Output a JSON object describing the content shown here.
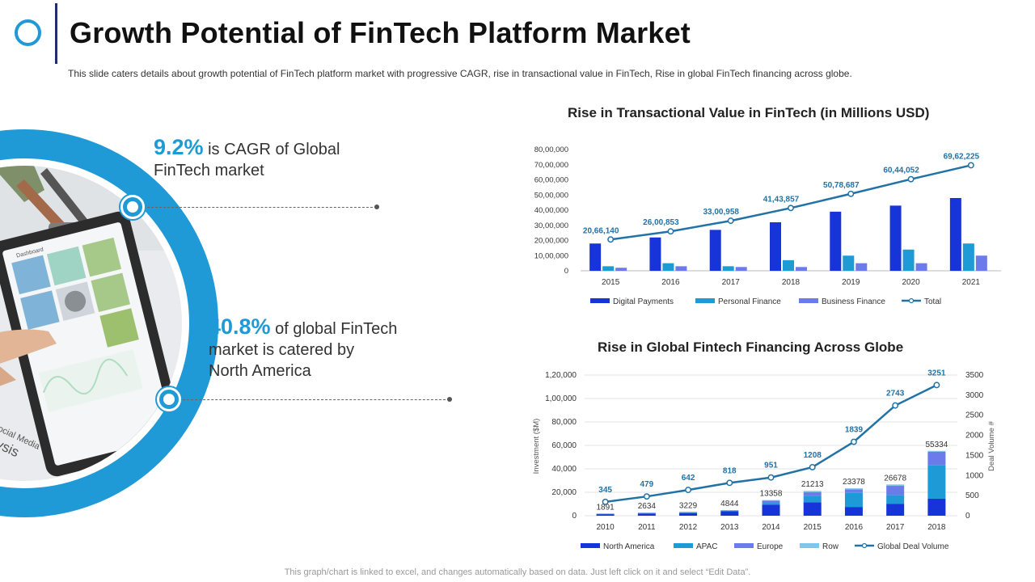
{
  "header": {
    "title": "Growth Potential of FinTech Platform Market",
    "subtitle": "This slide caters details about growth  potential of FinTech  platform market with progressive  CAGR, rise in transactional value  in FinTech, Rise in global FinTech financing across globe."
  },
  "stats": [
    {
      "value": "9.2%",
      "text_line1": " is CAGR  of Global",
      "text_line2": "FinTech market"
    },
    {
      "value": "40.8%",
      "text_line1": " of global FinTech",
      "text_line2": "market is catered by",
      "text_line3": "North America"
    }
  ],
  "photo": {
    "screen_label": "Dashboard",
    "paper_text_1": "Social Media",
    "paper_text_2": "alysis"
  },
  "footer": {
    "note": "This graph/chart is linked to excel,  and changes automatically based on data. Just left click on it and select “Edit Data”."
  },
  "colors": {
    "accent": "#1f9ad6",
    "title_bar": "#1f2f6b",
    "digital_payments": "#1734d9",
    "personal_finance": "#1e9bd7",
    "business_finance": "#6b7cea",
    "row": "#7fc6ef",
    "total_line": "#2173a6"
  },
  "chart_data": [
    {
      "type": "bar",
      "title": "Rise in Transactional Value in FinTech (in Millions USD)",
      "categories": [
        "2015",
        "2016",
        "2017",
        "2018",
        "2019",
        "2020",
        "2021"
      ],
      "ylim": [
        0,
        8000000
      ],
      "yticks": [
        "0",
        "10,00,000",
        "20,00,000",
        "30,00,000",
        "40,00,000",
        "50,00,000",
        "60,00,000",
        "70,00,000",
        "80,00,000"
      ],
      "series": [
        {
          "name": "Digital Payments",
          "values": [
            1800000,
            2200000,
            2700000,
            3200000,
            3900000,
            4300000,
            4800000
          ]
        },
        {
          "name": "Personal Finance",
          "values": [
            300000,
            500000,
            300000,
            700000,
            1000000,
            1400000,
            1800000
          ]
        },
        {
          "name": "Business Finance",
          "values": [
            200000,
            300000,
            250000,
            250000,
            500000,
            500000,
            1000000
          ]
        }
      ],
      "line": {
        "name": "Total",
        "values": [
          2066140,
          2600853,
          3300958,
          4143857,
          5078687,
          6044052,
          6962225
        ],
        "labels": [
          "20,66,140",
          "26,00,853",
          "33,00,958",
          "41,43,857",
          "50,78,687",
          "60,44,052",
          "69,62,225"
        ]
      },
      "legend": [
        "Digital Payments",
        "Personal Finance",
        "Business Finance",
        "Total"
      ],
      "legend_position": "bottom"
    },
    {
      "type": "bar",
      "stacked": true,
      "title": "Rise in Global Fintech Financing Across Globe",
      "categories": [
        "2010",
        "2011",
        "2012",
        "2013",
        "2014",
        "2015",
        "2016",
        "2017",
        "2018"
      ],
      "ylabel": "Investment ($M)",
      "y2label": "Deal Volume #",
      "ylim": [
        0,
        120000
      ],
      "yticks": [
        "0",
        "20,000",
        "40,000",
        "60,000",
        "80,000",
        "1,00,000",
        "1,20,000"
      ],
      "y2lim": [
        0,
        3500
      ],
      "y2ticks": [
        "0",
        "500",
        "1000",
        "1500",
        "2000",
        "2500",
        "3000",
        "3500"
      ],
      "series": [
        {
          "name": "North America",
          "values": [
            1300,
            1800,
            2300,
            3900,
            9500,
            11500,
            7500,
            10000,
            14500
          ]
        },
        {
          "name": "APAC",
          "values": [
            200,
            300,
            400,
            400,
            1500,
            5500,
            12000,
            7500,
            28500
          ]
        },
        {
          "name": "Europe",
          "values": [
            300,
            400,
            400,
            400,
            1800,
            3000,
            3000,
            8000,
            11500
          ]
        },
        {
          "name": "Row",
          "values": [
            91,
            134,
            129,
            144,
            558,
            1213,
            878,
            1178,
            834
          ]
        }
      ],
      "totals_labels": [
        "1891",
        "2634",
        "3229",
        "4844",
        "13358",
        "21213",
        "23378",
        "26678",
        "55334"
      ],
      "line": {
        "name": "Global Deal Volume",
        "values": [
          345,
          479,
          642,
          818,
          951,
          1208,
          1839,
          2743,
          3251
        ],
        "labels": [
          "345",
          "479",
          "642",
          "818",
          "951",
          "1208",
          "1839",
          "2743",
          "3251"
        ]
      },
      "legend": [
        "North America",
        "APAC",
        "Europe",
        "Row",
        "Global Deal Volume"
      ],
      "legend_position": "bottom"
    }
  ]
}
